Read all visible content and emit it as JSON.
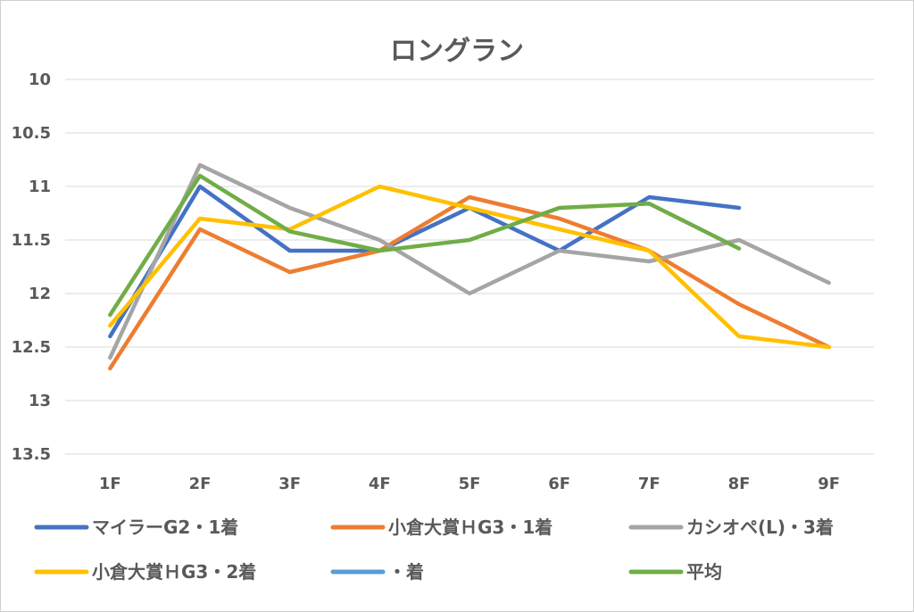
{
  "chart_data": {
    "type": "line",
    "title": "ロングラン",
    "categories": [
      "1F",
      "2F",
      "3F",
      "4F",
      "5F",
      "6F",
      "7F",
      "8F",
      "9F"
    ],
    "y_reversed": true,
    "ylim": [
      10,
      13.5
    ],
    "y_ticks": [
      "10",
      "10.5",
      "11",
      "11.5",
      "12",
      "12.5",
      "13",
      "13.5"
    ],
    "grid": true,
    "legend_position": "bottom",
    "series": [
      {
        "name": "マイラーG2・1着",
        "color": "#4472C4",
        "values": [
          12.4,
          11.0,
          11.6,
          11.6,
          11.2,
          11.6,
          11.1,
          11.2,
          null
        ]
      },
      {
        "name": "小倉大賞ＨG3・1着",
        "color": "#ED7D31",
        "values": [
          12.7,
          11.4,
          11.8,
          11.6,
          11.1,
          11.3,
          11.6,
          12.1,
          12.5
        ]
      },
      {
        "name": "カシオペ(L)・3着",
        "color": "#A5A5A5",
        "values": [
          12.6,
          10.8,
          11.2,
          11.5,
          12.0,
          11.6,
          11.7,
          11.5,
          11.9
        ]
      },
      {
        "name": "小倉大賞ＨG3・2着",
        "color": "#FFC000",
        "values": [
          12.3,
          11.3,
          11.4,
          11.0,
          11.2,
          11.4,
          11.6,
          12.4,
          12.5
        ]
      },
      {
        "name": "・着",
        "color": "#5B9BD5",
        "values": [
          null,
          null,
          null,
          null,
          null,
          null,
          null,
          null,
          null
        ]
      },
      {
        "name": "平均",
        "color": "#70AD47",
        "values": [
          12.2,
          10.9,
          11.42,
          11.6,
          11.5,
          11.2,
          11.16,
          11.58,
          null
        ]
      }
    ]
  }
}
